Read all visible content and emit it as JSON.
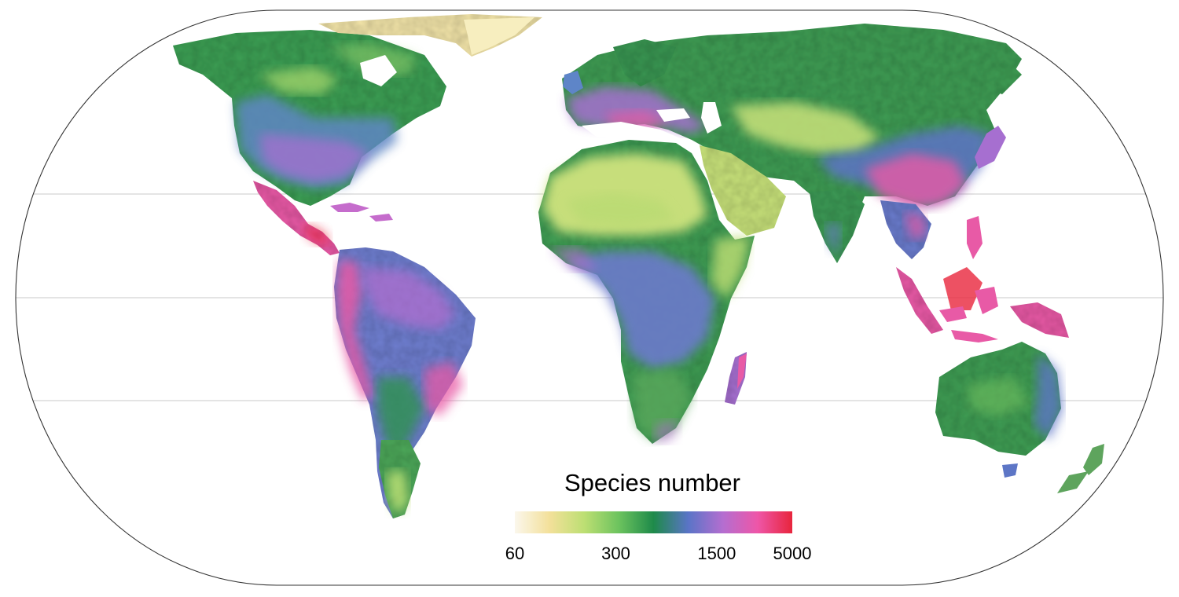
{
  "map": {
    "projection": "equal-earth",
    "graticule_parallels": 3,
    "background": "#ffffff",
    "land_colormap": "species richness"
  },
  "legend": {
    "title": "Species number",
    "scale": "log",
    "range": [
      60,
      5000
    ],
    "colors": [
      "#fbf7ec",
      "#f3e09a",
      "#bddf73",
      "#6cc35e",
      "#1e8a4a",
      "#5a74c7",
      "#b46ed0",
      "#ee56a8",
      "#e8253c"
    ],
    "ticks": [
      {
        "value": 60,
        "label": "60"
      },
      {
        "value": 300,
        "label": "300"
      },
      {
        "value": 1500,
        "label": "1500"
      },
      {
        "value": 5000,
        "label": "5000"
      }
    ]
  }
}
